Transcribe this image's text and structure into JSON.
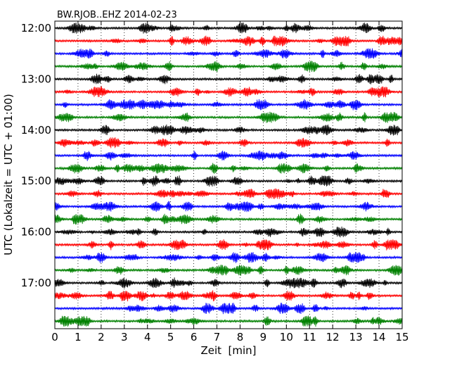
{
  "chart_data": {
    "type": "line",
    "title": "BW.RJOB..EHZ 2014-02-23",
    "xlabel": "Zeit  [min]",
    "ylabel": "UTC (Lokalzeit = UTC + 01:00)",
    "xlim": [
      0,
      15
    ],
    "x_ticks": [
      "0",
      "1",
      "2",
      "3",
      "4",
      "5",
      "6",
      "7",
      "8",
      "9",
      "10",
      "11",
      "12",
      "13",
      "14",
      "15"
    ],
    "y_tick_labels": [
      "12:00",
      "13:00",
      "14:00",
      "15:00",
      "16:00",
      "17:00"
    ],
    "traces_per_hour": 4,
    "trace_count": 24,
    "trace_colors": [
      "#000000",
      "#ff0000",
      "#0000ff",
      "#008000"
    ],
    "grid_x": "dotted vertical lines at each minute"
  }
}
